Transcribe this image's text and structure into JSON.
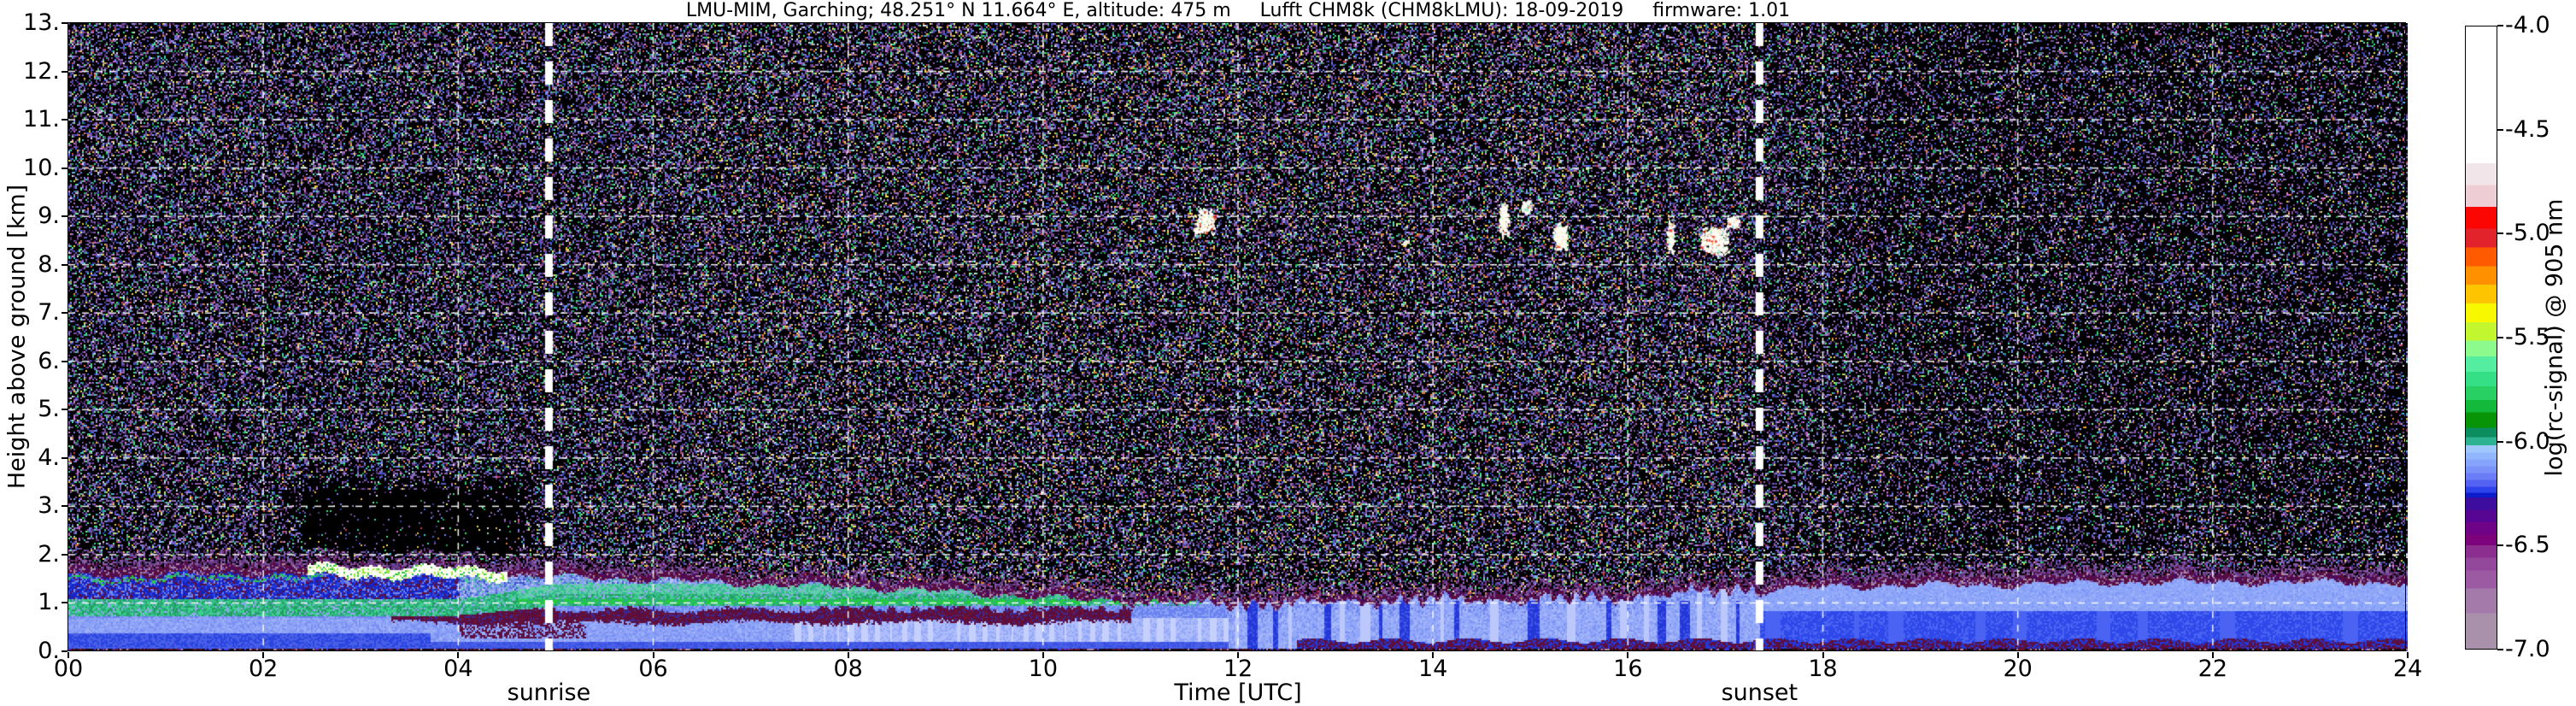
{
  "title": {
    "full": "LMU-MIM, Garching; 48.251° N 11.664° E, altitude: 475 m   Lufft CHM8k (CHM8kLMU): 18-09-2019   firmware: 1.01",
    "parts": [
      "LMU-MIM, Garching; 48.251° N 11.664° E, altitude: 475 m",
      "Lufft CHM8k (CHM8kLMU): 18-09-2019",
      "firmware: 1.01"
    ]
  },
  "chart_data": {
    "type": "heatmap",
    "title": "LMU-MIM, Garching; 48.251° N 11.664° E, altitude: 475 m   Lufft CHM8k (CHM8kLMU): 18-09-2019   firmware: 1.01",
    "xlabel": "Time [UTC]",
    "ylabel": "Height above ground [km]",
    "xlim": [
      0,
      24
    ],
    "ylim": [
      0,
      13
    ],
    "grid": "white dashed gridlines every 2 h and every 1 km",
    "x_ticks": {
      "labels": [
        "00",
        "02",
        "04",
        "06",
        "08",
        "10",
        "12",
        "14",
        "16",
        "18",
        "20",
        "22",
        "24"
      ],
      "hours": [
        0,
        2,
        4,
        6,
        8,
        10,
        12,
        14,
        16,
        18,
        20,
        22,
        24
      ]
    },
    "y_ticks": {
      "labels": [
        "0.",
        "1.",
        "2.",
        "3.",
        "4.",
        "5.",
        "6.",
        "7.",
        "8.",
        "9.",
        "10.",
        "11.",
        "12.",
        "13."
      ],
      "values": [
        0,
        1,
        2,
        3,
        4,
        5,
        6,
        7,
        8,
        9,
        10,
        11,
        12,
        13
      ]
    },
    "annotations": [
      {
        "label": "sunrise",
        "hour": 4.93
      },
      {
        "label": "sunset",
        "hour": 17.35
      }
    ],
    "colorbar": {
      "label": "log(rc-signal) @ 905 nm",
      "range": [
        -4.0,
        -7.0
      ],
      "ticks": {
        "labels": [
          "-4.0",
          "-4.5",
          "-5.0",
          "-5.5",
          "-6.0",
          "-6.5",
          "-7.0"
        ],
        "values": [
          -4.0,
          -4.5,
          -5.0,
          -5.5,
          -6.0,
          -6.5,
          -7.0
        ]
      },
      "stops": [
        [
          0,
          22,
          "#ffffff"
        ],
        [
          22,
          25.5,
          "#f2e5e9"
        ],
        [
          25.5,
          29,
          "#eecdd5"
        ],
        [
          29,
          32.5,
          "#fb0603"
        ],
        [
          32.5,
          35.5,
          "#e3232b"
        ],
        [
          35.5,
          38.5,
          "#ff5a00"
        ],
        [
          38.5,
          41.5,
          "#ff9000"
        ],
        [
          41.5,
          44.5,
          "#ffc400"
        ],
        [
          44.5,
          47.5,
          "#f8f800"
        ],
        [
          47.5,
          50.5,
          "#c2f62e"
        ],
        [
          50.5,
          53,
          "#8dfa8d"
        ],
        [
          53,
          55.5,
          "#55eda0"
        ],
        [
          55.5,
          57.8,
          "#35df85"
        ],
        [
          57.8,
          60,
          "#28cf62"
        ],
        [
          60,
          62,
          "#12b93a"
        ],
        [
          62,
          64.5,
          "#079407"
        ],
        [
          64.5,
          66,
          "#0c8d5f"
        ],
        [
          66,
          67.3,
          "#2db292"
        ],
        [
          67.3,
          68.5,
          "#9fc8fe"
        ],
        [
          68.5,
          69.6,
          "#92b6fd"
        ],
        [
          69.6,
          70.7,
          "#86a4fb"
        ],
        [
          70.7,
          71.8,
          "#7a92f9"
        ],
        [
          71.8,
          72.9,
          "#6a7cf6"
        ],
        [
          72.9,
          74,
          "#5462f2"
        ],
        [
          74,
          74.9,
          "#2f43ec"
        ],
        [
          74.9,
          75.7,
          "#0d1ccb"
        ],
        [
          75.7,
          77.7,
          "#3d0da0"
        ],
        [
          77.7,
          79.7,
          "#560692"
        ],
        [
          79.7,
          81.6,
          "#6f0387"
        ],
        [
          81.6,
          83.4,
          "#7c037c"
        ],
        [
          83.4,
          85.4,
          "#8b2e8f"
        ],
        [
          85.4,
          87.4,
          "#94489c"
        ],
        [
          87.4,
          90.3,
          "#9b5aa2"
        ],
        [
          90.3,
          94.3,
          "#a37aaa"
        ],
        [
          94.3,
          100,
          "#a991ac"
        ]
      ]
    },
    "features": {
      "description": "Ceilometer attenuated backscatter time-height plot: speckled molecular/noise region above the boundary layer up to 13 km, mixed aerosol boundary layer below ~1.8 km, small mid-level cloud echoes near 9 km between 11:30 and 17:00 UTC, signal-extinction shadow above a bright fog/cloud top between ~02:30 and 04:30 UTC.",
      "boundary_layer_top_km_per_hour": [
        1.75,
        1.78,
        1.8,
        1.78,
        1.75,
        1.7,
        1.65,
        1.55,
        1.5,
        1.4,
        1.28,
        1.15,
        1.1,
        1.15,
        1.2,
        1.2,
        1.25,
        1.4,
        1.5,
        1.55,
        1.55,
        1.6,
        1.6,
        1.6,
        1.6
      ],
      "dark_patch": {
        "t0": 2.4,
        "t1": 4.6,
        "km0": 1.72,
        "km1": 3.35
      },
      "layers": {
        "ground_strip_top_km": 0.055,
        "green_band": {
          "start_hour": 0,
          "end_hour": 11.9,
          "fade_start": 10.4,
          "low_km_night": 0.76,
          "high_km_night": 1.08,
          "low_km_day": 0.95,
          "high_km_day": 1.42
        },
        "fog_top_white": {
          "start_hour": 2.45,
          "end_hour": 4.5,
          "thickness_km": 0.22
        },
        "maroon_band": {
          "start_hour": 3.3,
          "end_hour": 10.9,
          "low_km": 0.56,
          "high_km": 0.92
        },
        "evening_maroon_bottom": {
          "start_hour": 12.6,
          "top_km": 0.24
        }
      },
      "clouds": [
        {
          "hour": 11.57,
          "km": 8.72,
          "dh": 0.04,
          "dkm": 0.07,
          "n": 25
        },
        {
          "hour": 11.66,
          "km": 8.9,
          "dh": 0.1,
          "dkm": 0.28,
          "n": 240
        },
        {
          "hour": 13.72,
          "km": 8.48,
          "dh": 0.03,
          "dkm": 0.05,
          "n": 12
        },
        {
          "hour": 14.72,
          "km": 8.95,
          "dh": 0.05,
          "dkm": 0.42,
          "n": 160
        },
        {
          "hour": 14.95,
          "km": 9.2,
          "dh": 0.05,
          "dkm": 0.15,
          "n": 90
        },
        {
          "hour": 15.3,
          "km": 8.6,
          "dh": 0.08,
          "dkm": 0.3,
          "n": 260
        },
        {
          "hour": 16.43,
          "km": 8.6,
          "dh": 0.04,
          "dkm": 0.38,
          "n": 120
        },
        {
          "hour": 16.88,
          "km": 8.5,
          "dh": 0.15,
          "dkm": 0.3,
          "n": 520
        },
        {
          "hour": 17.07,
          "km": 8.9,
          "dh": 0.07,
          "dkm": 0.14,
          "n": 110
        }
      ],
      "noise_palette": [
        [
          "#7b519f",
          10
        ],
        [
          "#5d3b85",
          8
        ],
        [
          "#8a64b2",
          8
        ],
        [
          "#9b7ac0",
          5
        ],
        [
          "#4a2a70",
          6
        ],
        [
          "#4a5fd8",
          5
        ],
        [
          "#7287ee",
          4
        ],
        [
          "#2b3fb0",
          3
        ],
        [
          "#8fa8f0",
          2
        ],
        [
          "#3fdf80",
          3
        ],
        [
          "#19a84e",
          3
        ],
        [
          "#7fe8a8",
          2
        ],
        [
          "#3fcfc0",
          2
        ],
        [
          "#c96ad0",
          2
        ],
        [
          "#e890d8",
          1
        ],
        [
          "#e6e65a",
          2
        ],
        [
          "#f0c040",
          1
        ],
        [
          "#e0803a",
          1
        ],
        [
          "#d04040",
          1
        ],
        [
          "#e8e4f0",
          2
        ]
      ],
      "grid_color": "#ffffff",
      "sun_line_color": "#ffffff"
    }
  }
}
